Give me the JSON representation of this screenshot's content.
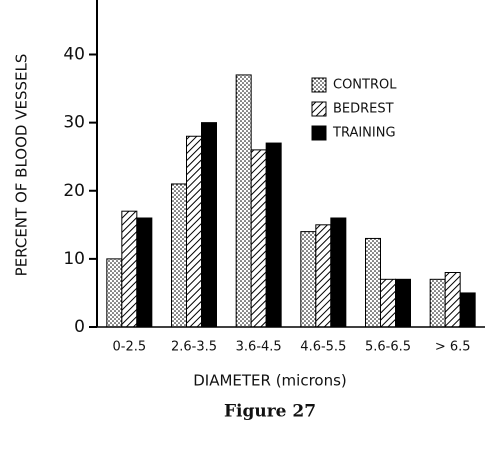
{
  "chart_data": {
    "type": "bar",
    "y_label": "PERCENT OF BLOOD VESSELS",
    "x_label": "DIAMETER (microns)",
    "caption": "Figure 27",
    "categories": [
      "0-2.5",
      "2.6-3.5",
      "3.6-4.5",
      "4.6-5.5",
      "5.6-6.5",
      "> 6.5"
    ],
    "series": [
      {
        "name": "CONTROL",
        "color": "#000000",
        "pattern": "dots",
        "values": [
          10,
          21,
          37,
          14,
          13,
          7
        ]
      },
      {
        "name": "BEDREST",
        "color": "#000000",
        "pattern": "hatch",
        "values": [
          17,
          28,
          26,
          15,
          7,
          8
        ]
      },
      {
        "name": "TRAINING",
        "color": "#000000",
        "pattern": "solid",
        "values": [
          16,
          30,
          27,
          16,
          7,
          5
        ]
      }
    ],
    "ylim": [
      0,
      48
    ],
    "yticks": [
      0,
      10,
      20,
      30,
      40
    ],
    "legend": "upper right"
  }
}
